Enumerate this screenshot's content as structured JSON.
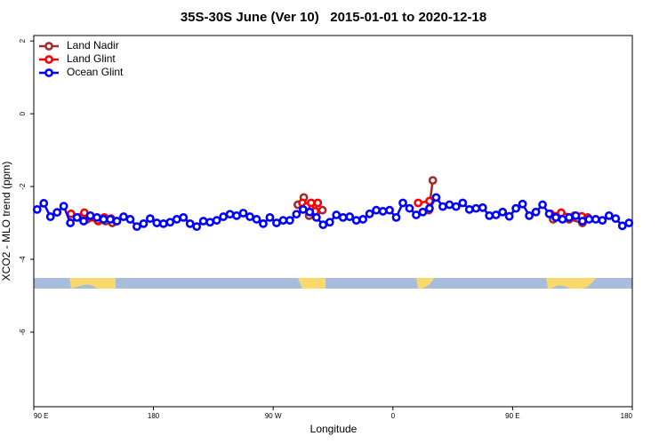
{
  "chart_data": {
    "type": "line",
    "title": "35S-30S June (Ver 10)   2015-01-01 to 2020-12-18",
    "x_label": "Longitude",
    "y_label": "XCO2 - MLO trend (ppm)",
    "xlim": [
      90,
      540
    ],
    "xticks": [
      {
        "value": 90,
        "label": "90 E"
      },
      180,
      {
        "value": 270,
        "label": "90 W"
      },
      {
        "value": 360,
        "label": "0"
      },
      {
        "value": 450,
        "label": "90 E"
      },
      {
        "value": 540,
        "label": "180"
      }
    ],
    "ylim": [
      -8.05,
      2.15
    ],
    "yticks": [
      2,
      0,
      -2,
      -4,
      -6
    ],
    "legend": "top-left",
    "series": [
      {
        "name": "Land Nadir",
        "color": "#a52a2a",
        "x": [
          125,
          130,
          138.5,
          144,
          149,
          200,
          288.5,
          293,
          297,
          302.5,
          307,
          340,
          387,
          390,
          440,
          480.5,
          492.5,
          502.5
        ],
        "values": [
          -2.85,
          -2.9,
          -2.95,
          -2.95,
          -3.0,
          null,
          -2.5,
          -2.3,
          -2.8,
          -2.7,
          -2.65,
          null,
          -2.65,
          -1.83,
          null,
          -2.9,
          -2.9,
          -3.0
        ]
      },
      {
        "name": "Land Glint",
        "color": "#ff0000",
        "x": [
          118,
          123,
          128,
          133,
          138,
          143,
          148,
          152,
          200,
          292,
          295,
          298.5,
          301.5,
          303.5,
          340,
          379,
          387.5,
          440,
          478.5,
          486.5,
          496.5,
          502,
          506.5
        ],
        "values": [
          -2.75,
          -2.85,
          -2.72,
          -2.85,
          -2.93,
          -2.85,
          -2.88,
          -2.95,
          null,
          -2.45,
          -2.55,
          -2.45,
          -2.68,
          -2.45,
          null,
          -2.45,
          -2.4,
          null,
          -2.75,
          -2.72,
          -2.8,
          -2.82,
          -2.85
        ]
      },
      {
        "name": "Ocean Glint",
        "color": "#0000ff",
        "x": [
          92.5,
          97.5,
          102.5,
          107.5,
          112.5,
          117.5,
          122.5,
          127.5,
          132.5,
          137.5,
          142.5,
          147.5,
          152.5,
          157.5,
          162.5,
          167.5,
          172.5,
          177.5,
          182.5,
          187.5,
          192.5,
          197.5,
          202.5,
          207.5,
          212.5,
          217.5,
          222.5,
          227.5,
          232.5,
          237.5,
          242.5,
          247.5,
          252.5,
          257.5,
          262.5,
          267.5,
          272.5,
          277.5,
          282.5,
          287.5,
          292.5,
          297.5,
          302.5,
          307.5,
          312.5,
          317.5,
          322.5,
          327.5,
          332.5,
          337.5,
          342.5,
          347.5,
          352.5,
          357.5,
          362.5,
          367.5,
          372.5,
          377.5,
          382.5,
          387.5,
          392.5,
          397.5,
          402.5,
          407.5,
          412.5,
          417.5,
          422.5,
          427.5,
          432.5,
          437.5,
          442.5,
          447.5,
          452.5,
          457.5,
          462.5,
          467.5,
          472.5,
          477.5,
          482.5,
          487.5,
          492.5,
          497.5,
          502.5,
          507.5,
          512.5,
          517.5,
          522.5,
          527.5,
          532.5,
          537.5
        ],
        "values": [
          -2.63,
          -2.46,
          -2.83,
          -2.71,
          -2.54,
          -3.0,
          -2.85,
          -2.95,
          -2.8,
          -2.85,
          -2.9,
          -2.9,
          -2.95,
          -2.83,
          -2.9,
          -3.1,
          -3.02,
          -2.88,
          -3.0,
          -3.02,
          -2.98,
          -2.9,
          -2.85,
          -3.02,
          -3.1,
          -2.95,
          -2.98,
          -2.93,
          -2.83,
          -2.76,
          -2.8,
          -2.73,
          -2.83,
          -2.9,
          -3.02,
          -2.85,
          -3.0,
          -2.93,
          -2.93,
          -2.76,
          -2.63,
          -2.7,
          -2.85,
          -3.05,
          -2.98,
          -2.78,
          -2.85,
          -2.83,
          -2.93,
          -2.9,
          -2.75,
          -2.65,
          -2.68,
          -2.65,
          -2.85,
          -2.45,
          -2.6,
          -2.78,
          -2.7,
          -2.6,
          -2.3,
          -2.55,
          -2.5,
          -2.55,
          -2.45,
          -2.63,
          -2.6,
          -2.58,
          -2.8,
          -2.78,
          -2.7,
          -2.82,
          -2.6,
          -2.48,
          -2.8,
          -2.7,
          -2.5,
          -2.75,
          -2.85,
          -2.9,
          -2.85,
          -2.8,
          -2.95,
          -2.9,
          -2.9,
          -2.93,
          -2.8,
          -2.88,
          -3.08,
          -3.0
        ]
      }
    ]
  }
}
